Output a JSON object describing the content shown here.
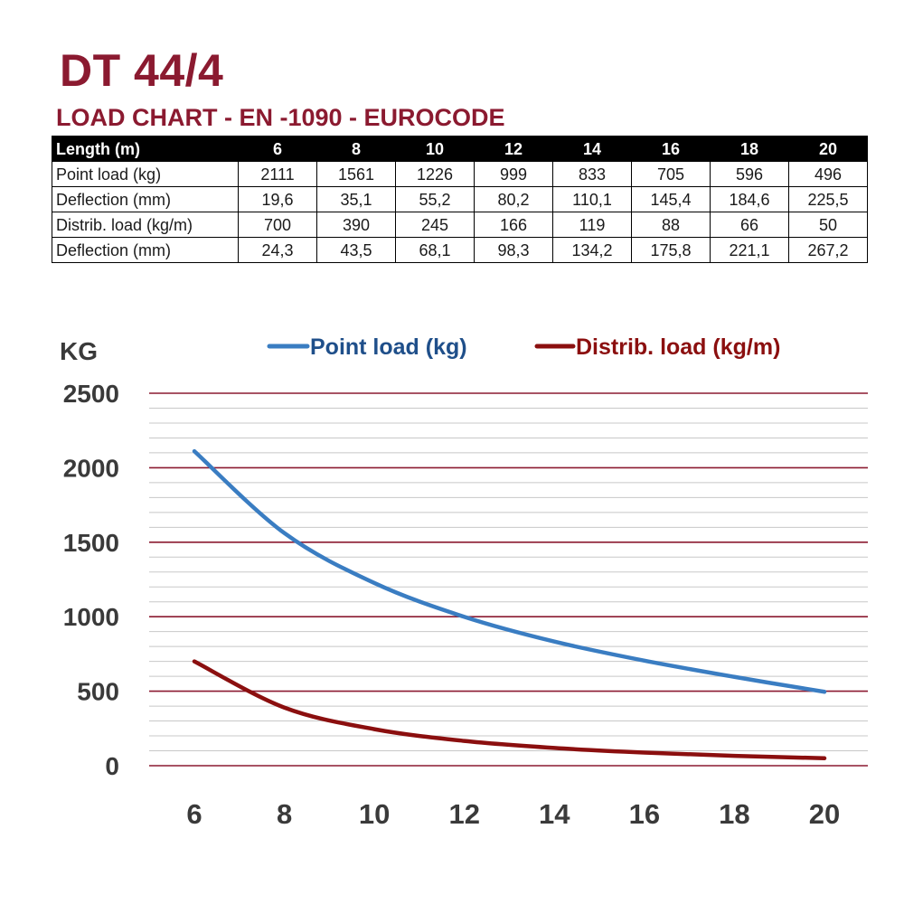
{
  "header": {
    "title": "DT 44/4",
    "subtitle": "LOAD CHART - EN -1090 - EUROCODE"
  },
  "table": {
    "header_label": "Length (m)",
    "columns": [
      "6",
      "8",
      "10",
      "12",
      "14",
      "16",
      "18",
      "20"
    ],
    "rows": [
      {
        "label": "Point load (kg)",
        "values": [
          "2111",
          "1561",
          "1226",
          "999",
          "833",
          "705",
          "596",
          "496"
        ]
      },
      {
        "label": "Deflection (mm)",
        "values": [
          "19,6",
          "35,1",
          "55,2",
          "80,2",
          "110,1",
          "145,4",
          "184,6",
          "225,5"
        ]
      },
      {
        "label": "Distrib. load (kg/m)",
        "values": [
          "700",
          "390",
          "245",
          "166",
          "119",
          "88",
          "66",
          "50"
        ]
      },
      {
        "label": "Deflection (mm)",
        "values": [
          "24,3",
          "43,5",
          "68,1",
          "98,3",
          "134,2",
          "175,8",
          "221,1",
          "267,2"
        ]
      }
    ]
  },
  "colors": {
    "brand": "#8b1a30",
    "point_load": "#3a7dc2",
    "distrib_load": "#8b0f0f",
    "major_grid": "#8b1a30",
    "minor_grid": "#c8c8c8"
  },
  "chart_data": {
    "type": "line",
    "ylabel": "KG",
    "xlabel": "",
    "x": [
      6,
      8,
      10,
      12,
      14,
      16,
      18,
      20
    ],
    "xticks": [
      "6",
      "8",
      "10",
      "12",
      "14",
      "16",
      "18",
      "20"
    ],
    "ylim": [
      0,
      2500
    ],
    "yticks": [
      "0",
      "500",
      "1000",
      "1500",
      "2000",
      "2500"
    ],
    "grid": true,
    "legend_position": "top",
    "series": [
      {
        "name": "Point load (kg)",
        "color": "#3a7dc2",
        "values": [
          2111,
          1561,
          1226,
          999,
          833,
          705,
          596,
          496
        ]
      },
      {
        "name": "Distrib. load (kg/m)",
        "color": "#8b0f0f",
        "values": [
          700,
          390,
          245,
          166,
          119,
          88,
          66,
          50
        ]
      }
    ]
  }
}
